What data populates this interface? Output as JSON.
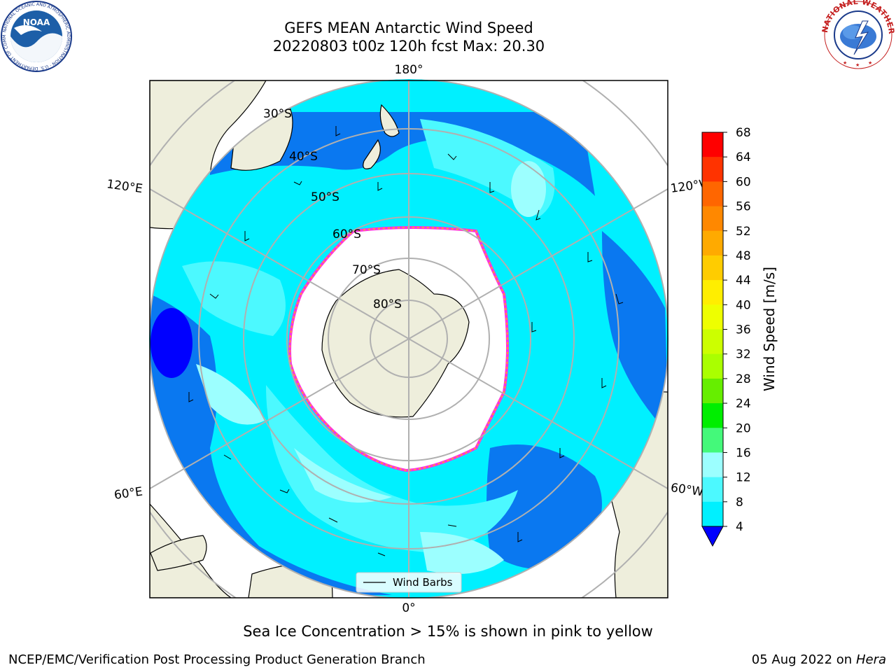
{
  "title": {
    "line1": "GEFS MEAN Antarctic Wind Speed",
    "line2": "20220803 t00z 120h fcst   Max: 20.30"
  },
  "map": {
    "projection": "south-polar-stereographic",
    "lon_labels": {
      "top": "180°",
      "bottom": "0°",
      "upper_left": "120°E",
      "lower_left": "60°E",
      "upper_right": "120°W",
      "lower_right": "60°W"
    },
    "lat_labels": [
      "30°S",
      "40°S",
      "50°S",
      "60°S",
      "70°S",
      "80°S"
    ],
    "legend_label": "Wind Barbs",
    "colors": {
      "land": "#EEEEDC",
      "ocean_4_8": "#0A78F0",
      "ocean_8_12": "#00F0FF",
      "ocean_12_16": "#4CF9FF",
      "ocean_16_20": "#9CFFFF",
      "ice_edge": "#FF33DD",
      "ice_edge_inner": "#FFC000",
      "grid": "#B0B0B0"
    }
  },
  "colorbar": {
    "label": "Wind Speed [m/s]",
    "ticks": [
      "68",
      "64",
      "60",
      "56",
      "52",
      "48",
      "44",
      "40",
      "36",
      "32",
      "28",
      "24",
      "20",
      "16",
      "12",
      "8",
      "4"
    ],
    "colors": [
      "#FF0000",
      "#FF3300",
      "#FF6600",
      "#FF8800",
      "#FFAA00",
      "#FFCC00",
      "#FFEE00",
      "#EEFF00",
      "#CCFF00",
      "#AAFF00",
      "#66EE00",
      "#00EE00",
      "#44F97A",
      "#9CFFFF",
      "#4CF9FF",
      "#00F0FF",
      "#0A78F0"
    ],
    "extend_min_color": "#0000FF"
  },
  "footer": {
    "sea_ice_note": "Sea Ice Concentration > 15% is shown in pink to yellow",
    "credit": "NCEP/EMC/Verification Post Processing Product Generation Branch",
    "date": "05 Aug 2022 on",
    "machine": "Hera"
  },
  "logos": {
    "noaa_text": "NOAA",
    "noaa_ring": "NATIONAL OCEANIC AND ATMOSPHERIC ADMINISTRATION · U.S. DEPARTMENT OF COMMERCE",
    "nws_ring": "NATIONAL WEATHER SERVICE"
  }
}
